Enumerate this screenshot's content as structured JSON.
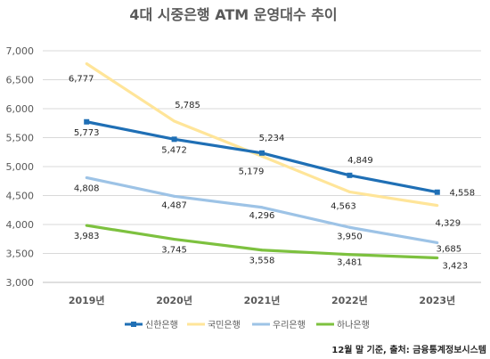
{
  "chart_data": {
    "type": "line",
    "title": "4대 시중은행 ATM 운영대수 추이",
    "categories": [
      "2019년",
      "2020년",
      "2021년",
      "2022년",
      "2023년"
    ],
    "yticks": [
      "3,000",
      "3,500",
      "4,000",
      "4,500",
      "5,000",
      "5,500",
      "6,000",
      "6,500",
      "7,000"
    ],
    "ylim": [
      3000,
      7000
    ],
    "grid": true,
    "legend_position": "bottom",
    "series": [
      {
        "name": "신한은행",
        "color": "#1f6fb5",
        "marker": "square",
        "values": [
          5773,
          5472,
          5234,
          4849,
          4558
        ],
        "labels": [
          "5,773",
          "5,472",
          "5,234",
          "4,849",
          "4,558"
        ]
      },
      {
        "name": "국민은행",
        "color": "#ffe599",
        "marker": "none",
        "values": [
          6777,
          5785,
          5179,
          4563,
          4329
        ],
        "labels": [
          "6,777",
          "5,785",
          "5,179",
          "4,563",
          "4,329"
        ]
      },
      {
        "name": "우리은행",
        "color": "#9dc3e6",
        "marker": "none",
        "values": [
          4808,
          4487,
          4296,
          3950,
          3685
        ],
        "labels": [
          "4,808",
          "4,487",
          "4,296",
          "3,950",
          "3,685"
        ]
      },
      {
        "name": "하나은행",
        "color": "#7dc13f",
        "marker": "none",
        "values": [
          3983,
          3745,
          3558,
          3481,
          3423
        ],
        "labels": [
          "3,983",
          "3,745",
          "3,558",
          "3,481",
          "3,423"
        ]
      }
    ],
    "source_note": "12월 말 기준, 출처: 금융통계정보시스템"
  }
}
